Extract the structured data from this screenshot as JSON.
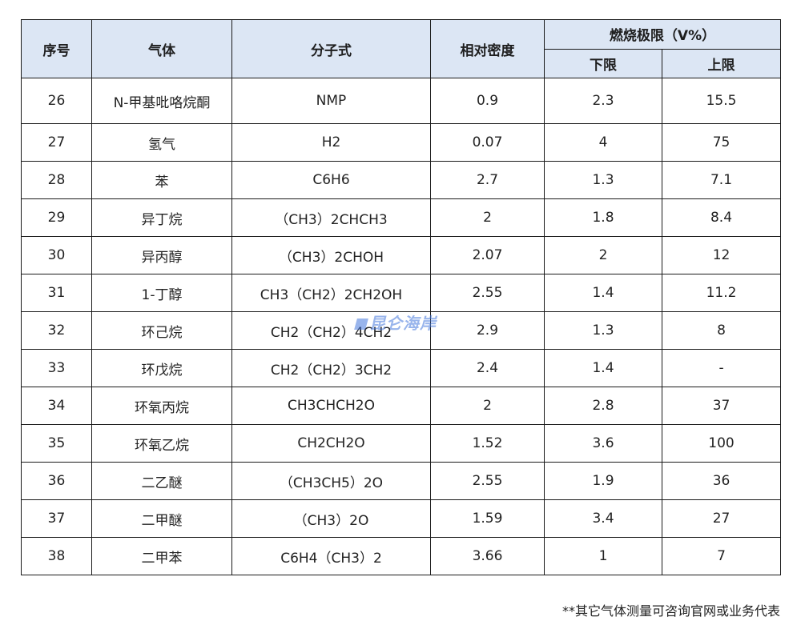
{
  "table": {
    "headers": {
      "index": "序号",
      "gas": "气体",
      "formula": "分子式",
      "density": "相对密度",
      "limit_group": "燃烧极限（V%）",
      "lower": "下限",
      "upper": "上限"
    },
    "rows": [
      {
        "no": "26",
        "gas": "N-甲基吡咯烷酮",
        "formula": "NMP",
        "density": "0.9",
        "lower": "2.3",
        "upper": "15.5"
      },
      {
        "no": "27",
        "gas": "氢气",
        "formula": "H2",
        "density": "0.07",
        "lower": "4",
        "upper": "75"
      },
      {
        "no": "28",
        "gas": "苯",
        "formula": "C6H6",
        "density": "2.7",
        "lower": "1.3",
        "upper": "7.1"
      },
      {
        "no": "29",
        "gas": "异丁烷",
        "formula": "（CH3）2CHCH3",
        "density": "2",
        "lower": "1.8",
        "upper": "8.4"
      },
      {
        "no": "30",
        "gas": "异丙醇",
        "formula": "（CH3）2CHOH",
        "density": "2.07",
        "lower": "2",
        "upper": "12"
      },
      {
        "no": "31",
        "gas": "1-丁醇",
        "formula": "CH3（CH2）2CH2OH",
        "density": "2.55",
        "lower": "1.4",
        "upper": "11.2"
      },
      {
        "no": "32",
        "gas": "环己烷",
        "formula": "CH2（CH2）4CH2",
        "density": "2.9",
        "lower": "1.3",
        "upper": "8"
      },
      {
        "no": "33",
        "gas": "环戊烷",
        "formula": "CH2（CH2）3CH2",
        "density": "2.4",
        "lower": "1.4",
        "upper": "-"
      },
      {
        "no": "34",
        "gas": "环氧丙烷",
        "formula": "CH3CHCH2O",
        "density": "2",
        "lower": "2.8",
        "upper": "37"
      },
      {
        "no": "35",
        "gas": "环氧乙烷",
        "formula": "CH2CH2O",
        "density": "1.52",
        "lower": "3.6",
        "upper": "100"
      },
      {
        "no": "36",
        "gas": "二乙醚",
        "formula": "（CH3CH5）2O",
        "density": "2.55",
        "lower": "1.9",
        "upper": "36"
      },
      {
        "no": "37",
        "gas": "二甲醚",
        "formula": "（CH3）2O",
        "density": "1.59",
        "lower": "3.4",
        "upper": "27"
      },
      {
        "no": "38",
        "gas": "二甲苯",
        "formula": "C6H4（CH3）2",
        "density": "3.66",
        "lower": "1",
        "upper": "7"
      }
    ]
  },
  "footnote": "**其它气体测量可咨询官网或业务代表",
  "watermark": "昆仑海岸",
  "colors": {
    "header_bg": "#dce6f4",
    "border": "#1a1a1a",
    "watermark": "#4678dc"
  }
}
